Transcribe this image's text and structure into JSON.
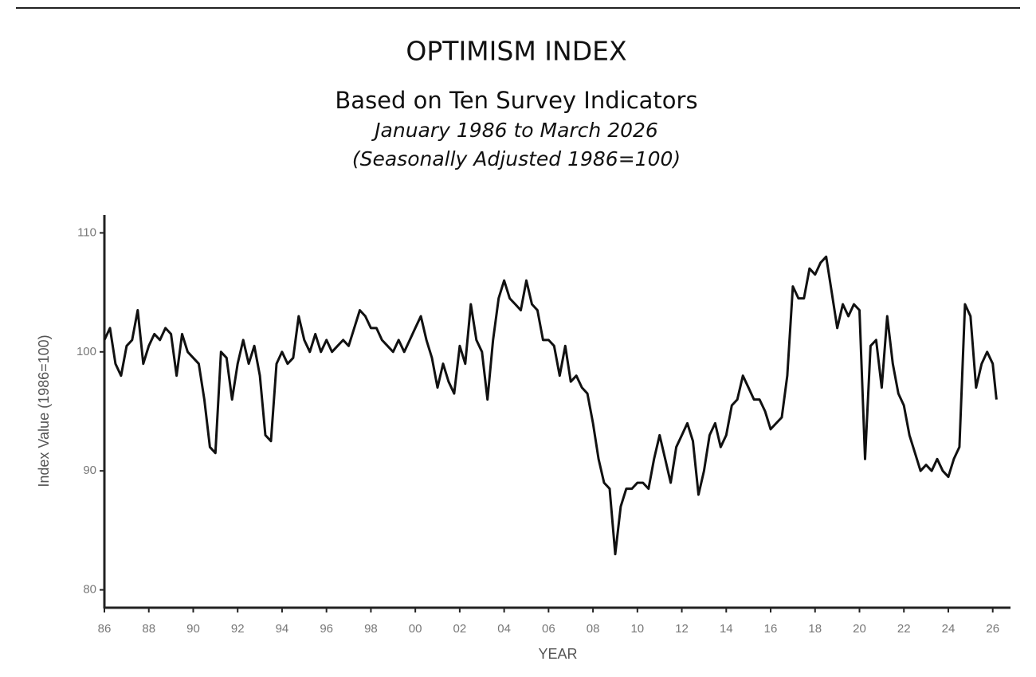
{
  "chart_data": {
    "type": "line",
    "title": "OPTIMISM INDEX",
    "subtitle": "Based on Ten Survey Indicators",
    "notes": [
      "January 1986 to March 2026",
      "(Seasonally Adjusted 1986=100)"
    ],
    "x_label": "YEAR",
    "y_label": "Index Value (1986=100)",
    "color": "#111111",
    "grid": false,
    "xlim": [
      1986,
      2026.8
    ],
    "ylim": [
      78.5,
      111.5
    ],
    "yticks": [
      80,
      90,
      100,
      110
    ],
    "xticks": [
      {
        "value": 1986,
        "label": "86"
      },
      {
        "value": 1988,
        "label": "88"
      },
      {
        "value": 1990,
        "label": "90"
      },
      {
        "value": 1992,
        "label": "92"
      },
      {
        "value": 1994,
        "label": "94"
      },
      {
        "value": 1996,
        "label": "96"
      },
      {
        "value": 1998,
        "label": "98"
      },
      {
        "value": 2000,
        "label": "00"
      },
      {
        "value": 2002,
        "label": "02"
      },
      {
        "value": 2004,
        "label": "04"
      },
      {
        "value": 2006,
        "label": "06"
      },
      {
        "value": 2008,
        "label": "08"
      },
      {
        "value": 2010,
        "label": "10"
      },
      {
        "value": 2012,
        "label": "12"
      },
      {
        "value": 2014,
        "label": "14"
      },
      {
        "value": 2016,
        "label": "16"
      },
      {
        "value": 2018,
        "label": "18"
      },
      {
        "value": 2020,
        "label": "20"
      },
      {
        "value": 2022,
        "label": "22"
      },
      {
        "value": 2024,
        "label": "24"
      },
      {
        "value": 2026,
        "label": "26"
      }
    ],
    "x": [
      1986,
      1986.25,
      1986.5,
      1986.75,
      1987,
      1987.25,
      1987.5,
      1987.75,
      1988,
      1988.25,
      1988.5,
      1988.75,
      1989,
      1989.25,
      1989.5,
      1989.75,
      1990,
      1990.25,
      1990.5,
      1990.75,
      1991,
      1991.25,
      1991.5,
      1991.75,
      1992,
      1992.25,
      1992.5,
      1992.75,
      1993,
      1993.25,
      1993.5,
      1993.75,
      1994,
      1994.25,
      1994.5,
      1994.75,
      1995,
      1995.25,
      1995.5,
      1995.75,
      1996,
      1996.25,
      1996.5,
      1996.75,
      1997,
      1997.25,
      1997.5,
      1997.75,
      1998,
      1998.25,
      1998.5,
      1998.75,
      1999,
      1999.25,
      1999.5,
      1999.75,
      2000,
      2000.25,
      2000.5,
      2000.75,
      2001,
      2001.25,
      2001.5,
      2001.75,
      2002,
      2002.25,
      2002.5,
      2002.75,
      2003,
      2003.25,
      2003.5,
      2003.75,
      2004,
      2004.25,
      2004.5,
      2004.75,
      2005,
      2005.25,
      2005.5,
      2005.75,
      2006,
      2006.25,
      2006.5,
      2006.75,
      2007,
      2007.25,
      2007.5,
      2007.75,
      2008,
      2008.25,
      2008.5,
      2008.75,
      2009,
      2009.25,
      2009.5,
      2009.75,
      2010,
      2010.25,
      2010.5,
      2010.75,
      2011,
      2011.25,
      2011.5,
      2011.75,
      2012,
      2012.25,
      2012.5,
      2012.75,
      2013,
      2013.25,
      2013.5,
      2013.75,
      2014,
      2014.25,
      2014.5,
      2014.75,
      2015,
      2015.25,
      2015.5,
      2015.75,
      2016,
      2016.25,
      2016.5,
      2016.75,
      2017,
      2017.25,
      2017.5,
      2017.75,
      2018,
      2018.25,
      2018.5,
      2018.75,
      2019,
      2019.25,
      2019.5,
      2019.75,
      2020,
      2020.25,
      2020.5,
      2020.75,
      2021,
      2021.25,
      2021.5,
      2021.75,
      2022,
      2022.25,
      2022.5,
      2022.75,
      2023,
      2023.25,
      2023.5,
      2023.75,
      2024,
      2024.25,
      2024.5,
      2024.75,
      2025,
      2025.25,
      2025.5,
      2025.75,
      2026,
      2026.17
    ],
    "values": [
      101,
      102,
      99,
      98,
      100.5,
      101,
      103.5,
      99,
      100.5,
      101.5,
      101,
      102,
      101.5,
      98,
      101.5,
      100,
      99.5,
      99,
      96,
      92,
      91.5,
      100,
      99.5,
      96,
      99,
      101,
      99,
      100.5,
      98,
      93,
      92.5,
      99,
      100,
      99,
      99.5,
      103,
      101,
      100,
      101.5,
      100,
      101,
      100,
      100.5,
      101,
      100.5,
      102,
      103.5,
      103,
      102,
      102,
      101,
      100.5,
      100,
      101,
      100,
      101,
      102,
      103,
      101,
      99.5,
      97,
      99,
      97.5,
      96.5,
      100.5,
      99,
      104,
      101,
      100,
      96,
      101,
      104.5,
      106,
      104.5,
      104,
      103.5,
      106,
      104,
      103.5,
      101,
      101,
      100.5,
      98,
      100.5,
      97.5,
      98,
      97,
      96.5,
      94,
      91,
      89,
      88.5,
      83,
      87,
      88.5,
      88.5,
      89,
      89,
      88.5,
      91,
      93,
      91,
      89,
      92,
      93,
      94,
      92.5,
      88,
      90,
      93,
      94,
      92,
      93,
      95.5,
      96,
      98,
      97,
      96,
      96,
      95,
      93.5,
      94,
      94.5,
      98,
      105.5,
      104.5,
      104.5,
      107,
      106.5,
      107.5,
      108,
      105,
      102,
      104,
      103,
      104,
      103.5,
      91,
      100.5,
      101,
      97,
      103,
      99,
      96.5,
      95.5,
      93,
      91.5,
      90,
      90.5,
      90,
      91,
      90,
      89.5,
      91,
      92,
      104,
      103,
      97,
      99,
      100,
      99,
      96
    ]
  }
}
